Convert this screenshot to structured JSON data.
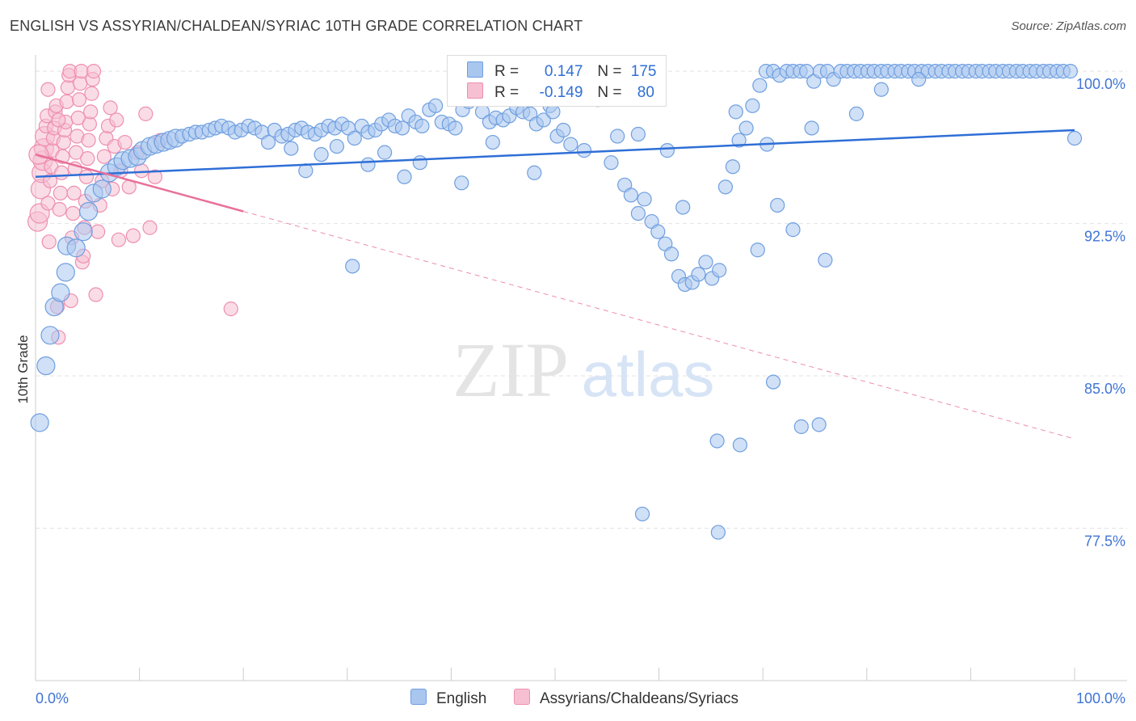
{
  "title": "ENGLISH VS ASSYRIAN/CHALDEAN/SYRIAC 10TH GRADE CORRELATION CHART",
  "source": "Source: ZipAtlas.com",
  "watermark": {
    "zip": "ZIP",
    "atlas": "atlas"
  },
  "legend": {
    "r_label": "R =",
    "n_label": "N =",
    "english": {
      "r": "0.147",
      "n": "175"
    },
    "assyrian": {
      "r": "-0.149",
      "n": "80"
    }
  },
  "colors": {
    "english_fill": "#a9c6ef",
    "english_stroke": "#6f9fe0",
    "english_line": "#2f6fd6",
    "assyrian_fill": "#f6c0d2",
    "assyrian_stroke": "#ee8fb0",
    "assyrian_line": "#e8709a",
    "axis_label": "#3f74d4",
    "grid": "#e3e3e3"
  },
  "chart_data": {
    "type": "scatter",
    "title": "ENGLISH VS ASSYRIAN/CHALDEAN/SYRIAC 10TH GRADE CORRELATION CHART",
    "xlabel": "",
    "ylabel": "10th Grade",
    "xlim": [
      0,
      100
    ],
    "ylim": [
      70.0,
      100.8
    ],
    "x_tick_labels": [
      "0.0%",
      "100.0%"
    ],
    "y_ticks": [
      77.5,
      85.0,
      92.5,
      100.0
    ],
    "y_tick_labels": [
      "77.5%",
      "85.0%",
      "92.5%",
      "100.0%"
    ],
    "legend_position": "top-center",
    "series": [
      {
        "name": "English",
        "r": 0.147,
        "n": 175,
        "trend": {
          "x0": 0,
          "y0": 94.8,
          "x1": 100,
          "y1": 97.1
        },
        "points": [
          [
            0.4,
            82.7
          ],
          [
            1.0,
            85.5
          ],
          [
            1.4,
            87.0
          ],
          [
            1.8,
            88.4
          ],
          [
            2.4,
            89.1
          ],
          [
            2.9,
            90.1
          ],
          [
            3.0,
            91.4
          ],
          [
            3.9,
            91.3
          ],
          [
            4.6,
            92.1
          ],
          [
            5.1,
            93.1
          ],
          [
            5.6,
            94.0
          ],
          [
            6.4,
            94.2
          ],
          [
            7.1,
            95.0
          ],
          [
            7.8,
            95.3
          ],
          [
            8.4,
            95.6
          ],
          [
            9.1,
            95.7
          ],
          [
            9.8,
            95.8
          ],
          [
            10.3,
            96.1
          ],
          [
            11.0,
            96.3
          ],
          [
            11.6,
            96.4
          ],
          [
            12.3,
            96.5
          ],
          [
            12.9,
            96.6
          ],
          [
            13.5,
            96.7
          ],
          [
            14.1,
            96.8
          ],
          [
            14.8,
            96.9
          ],
          [
            15.4,
            97.0
          ],
          [
            16.0,
            97.0
          ],
          [
            16.7,
            97.1
          ],
          [
            17.3,
            97.2
          ],
          [
            17.9,
            97.3
          ],
          [
            18.6,
            97.2
          ],
          [
            19.2,
            97.0
          ],
          [
            19.8,
            97.1
          ],
          [
            20.5,
            97.3
          ],
          [
            21.1,
            97.2
          ],
          [
            21.8,
            97.0
          ],
          [
            22.4,
            96.5
          ],
          [
            23.0,
            97.1
          ],
          [
            23.7,
            96.8
          ],
          [
            24.3,
            96.9
          ],
          [
            25.0,
            97.1
          ],
          [
            25.6,
            97.2
          ],
          [
            26.2,
            97.0
          ],
          [
            26.9,
            96.9
          ],
          [
            27.5,
            97.1
          ],
          [
            28.2,
            97.3
          ],
          [
            28.8,
            97.2
          ],
          [
            29.5,
            97.4
          ],
          [
            30.1,
            97.2
          ],
          [
            30.7,
            96.7
          ],
          [
            31.4,
            97.3
          ],
          [
            32.0,
            97.0
          ],
          [
            32.7,
            97.1
          ],
          [
            33.3,
            97.4
          ],
          [
            34.0,
            97.6
          ],
          [
            34.6,
            97.3
          ],
          [
            35.3,
            97.2
          ],
          [
            35.9,
            97.8
          ],
          [
            36.6,
            97.5
          ],
          [
            37.2,
            97.3
          ],
          [
            37.9,
            98.1
          ],
          [
            38.5,
            98.3
          ],
          [
            39.1,
            97.5
          ],
          [
            39.8,
            97.4
          ],
          [
            40.4,
            97.2
          ],
          [
            41.1,
            98.1
          ],
          [
            41.7,
            98.5
          ],
          [
            42.4,
            98.7
          ],
          [
            43.0,
            98.0
          ],
          [
            43.7,
            97.5
          ],
          [
            44.3,
            97.7
          ],
          [
            45.0,
            97.6
          ],
          [
            45.6,
            97.8
          ],
          [
            46.3,
            98.2
          ],
          [
            46.9,
            98.0
          ],
          [
            47.6,
            97.9
          ],
          [
            48.2,
            97.4
          ],
          [
            48.9,
            97.6
          ],
          [
            49.5,
            98.3
          ],
          [
            50.2,
            96.8
          ],
          [
            50.8,
            97.1
          ],
          [
            51.5,
            96.4
          ],
          [
            52.1,
            98.9
          ],
          [
            52.8,
            96.1
          ],
          [
            53.4,
            98.8
          ],
          [
            54.1,
            98.6
          ],
          [
            54.7,
            99.2
          ],
          [
            55.4,
            95.5
          ],
          [
            56.0,
            96.8
          ],
          [
            56.7,
            94.4
          ],
          [
            57.3,
            93.9
          ],
          [
            58.0,
            93.0
          ],
          [
            58.6,
            93.7
          ],
          [
            59.3,
            92.6
          ],
          [
            59.9,
            92.1
          ],
          [
            60.6,
            91.5
          ],
          [
            61.2,
            91.0
          ],
          [
            61.9,
            89.9
          ],
          [
            62.5,
            89.5
          ],
          [
            63.2,
            89.6
          ],
          [
            63.8,
            90.0
          ],
          [
            64.5,
            90.6
          ],
          [
            65.1,
            89.8
          ],
          [
            65.8,
            90.2
          ],
          [
            66.4,
            94.3
          ],
          [
            67.1,
            95.3
          ],
          [
            67.7,
            96.6
          ],
          [
            68.4,
            97.2
          ],
          [
            69.0,
            98.3
          ],
          [
            69.7,
            99.3
          ],
          [
            70.3,
            100.0
          ],
          [
            71.0,
            100.0
          ],
          [
            71.6,
            99.8
          ],
          [
            72.3,
            100.0
          ],
          [
            72.9,
            100.0
          ],
          [
            73.6,
            100.0
          ],
          [
            74.2,
            100.0
          ],
          [
            74.9,
            99.5
          ],
          [
            75.5,
            100.0
          ],
          [
            76.2,
            100.0
          ],
          [
            76.8,
            99.6
          ],
          [
            77.5,
            100.0
          ],
          [
            78.1,
            100.0
          ],
          [
            78.8,
            100.0
          ],
          [
            79.4,
            100.0
          ],
          [
            80.1,
            100.0
          ],
          [
            80.7,
            100.0
          ],
          [
            81.4,
            100.0
          ],
          [
            82.0,
            100.0
          ],
          [
            82.7,
            100.0
          ],
          [
            83.3,
            100.0
          ],
          [
            84.0,
            100.0
          ],
          [
            84.6,
            100.0
          ],
          [
            85.3,
            100.0
          ],
          [
            85.9,
            100.0
          ],
          [
            86.6,
            100.0
          ],
          [
            87.2,
            100.0
          ],
          [
            87.9,
            100.0
          ],
          [
            88.5,
            100.0
          ],
          [
            89.2,
            100.0
          ],
          [
            89.8,
            100.0
          ],
          [
            90.5,
            100.0
          ],
          [
            91.1,
            100.0
          ],
          [
            91.8,
            100.0
          ],
          [
            92.4,
            100.0
          ],
          [
            93.1,
            100.0
          ],
          [
            93.7,
            100.0
          ],
          [
            94.4,
            100.0
          ],
          [
            95.0,
            100.0
          ],
          [
            95.7,
            100.0
          ],
          [
            96.3,
            100.0
          ],
          [
            97.0,
            100.0
          ],
          [
            97.6,
            100.0
          ],
          [
            98.3,
            100.0
          ],
          [
            98.9,
            100.0
          ],
          [
            99.6,
            100.0
          ],
          [
            100.0,
            96.7
          ],
          [
            49.8,
            98.0
          ],
          [
            44.0,
            96.5
          ],
          [
            48.0,
            95.0
          ],
          [
            41.0,
            94.5
          ],
          [
            37.0,
            95.5
          ],
          [
            35.5,
            94.8
          ],
          [
            33.6,
            96.0
          ],
          [
            32.0,
            95.4
          ],
          [
            30.5,
            90.4
          ],
          [
            29.0,
            96.3
          ],
          [
            27.5,
            95.9
          ],
          [
            26.0,
            95.1
          ],
          [
            24.6,
            96.2
          ],
          [
            71.0,
            84.7
          ],
          [
            73.7,
            82.5
          ],
          [
            75.4,
            82.6
          ],
          [
            67.8,
            81.6
          ],
          [
            65.6,
            81.8
          ],
          [
            58.4,
            78.2
          ],
          [
            65.7,
            77.3
          ],
          [
            76.0,
            90.7
          ],
          [
            71.4,
            93.4
          ],
          [
            72.9,
            92.2
          ],
          [
            62.3,
            93.3
          ],
          [
            69.5,
            91.2
          ],
          [
            74.7,
            97.2
          ],
          [
            81.4,
            99.1
          ],
          [
            70.4,
            96.4
          ],
          [
            67.4,
            98.0
          ],
          [
            79.0,
            97.9
          ],
          [
            85.0,
            99.6
          ],
          [
            58.0,
            96.9
          ],
          [
            60.8,
            96.1
          ]
        ]
      },
      {
        "name": "Assyrians/Chaldeans/Syriacs",
        "r": -0.149,
        "n": 80,
        "trend": {
          "x0": 0,
          "y0": 95.9,
          "x1": 100,
          "y1": 81.9,
          "solid_until_x": 20
        },
        "points": [
          [
            0.2,
            92.6
          ],
          [
            0.4,
            93.0
          ],
          [
            0.5,
            94.2
          ],
          [
            0.6,
            95.0
          ],
          [
            0.7,
            95.6
          ],
          [
            0.8,
            96.2
          ],
          [
            0.9,
            96.8
          ],
          [
            1.0,
            97.3
          ],
          [
            1.1,
            97.8
          ],
          [
            1.2,
            93.5
          ],
          [
            1.3,
            91.6
          ],
          [
            1.4,
            94.6
          ],
          [
            1.5,
            95.3
          ],
          [
            1.6,
            96.1
          ],
          [
            1.7,
            96.7
          ],
          [
            1.8,
            97.2
          ],
          [
            1.9,
            98.0
          ],
          [
            2.0,
            98.3
          ],
          [
            2.1,
            88.4
          ],
          [
            2.2,
            86.9
          ],
          [
            2.3,
            93.2
          ],
          [
            2.4,
            94.0
          ],
          [
            2.5,
            95.0
          ],
          [
            2.6,
            95.8
          ],
          [
            2.7,
            96.5
          ],
          [
            2.8,
            97.1
          ],
          [
            2.9,
            97.5
          ],
          [
            3.0,
            98.5
          ],
          [
            3.1,
            99.2
          ],
          [
            3.2,
            99.8
          ],
          [
            3.3,
            100.0
          ],
          [
            3.4,
            88.7
          ],
          [
            3.5,
            91.8
          ],
          [
            3.6,
            93.0
          ],
          [
            3.7,
            94.0
          ],
          [
            3.8,
            95.2
          ],
          [
            3.9,
            96.0
          ],
          [
            4.0,
            96.8
          ],
          [
            4.1,
            97.7
          ],
          [
            4.2,
            98.6
          ],
          [
            4.3,
            99.4
          ],
          [
            4.4,
            100.0
          ],
          [
            4.5,
            90.6
          ],
          [
            4.6,
            90.9
          ],
          [
            4.7,
            92.3
          ],
          [
            4.8,
            93.6
          ],
          [
            4.9,
            94.8
          ],
          [
            5.0,
            95.7
          ],
          [
            5.1,
            96.6
          ],
          [
            5.2,
            97.4
          ],
          [
            5.3,
            98.0
          ],
          [
            5.4,
            98.9
          ],
          [
            5.5,
            99.6
          ],
          [
            5.6,
            100.0
          ],
          [
            5.8,
            89.0
          ],
          [
            6.0,
            92.1
          ],
          [
            6.2,
            93.4
          ],
          [
            6.4,
            94.6
          ],
          [
            6.6,
            95.8
          ],
          [
            6.8,
            96.7
          ],
          [
            7.0,
            97.3
          ],
          [
            7.2,
            98.2
          ],
          [
            7.4,
            94.2
          ],
          [
            7.6,
            96.3
          ],
          [
            7.8,
            97.6
          ],
          [
            8.0,
            91.7
          ],
          [
            8.2,
            95.1
          ],
          [
            8.6,
            96.5
          ],
          [
            9.0,
            94.3
          ],
          [
            9.4,
            91.9
          ],
          [
            9.8,
            96.0
          ],
          [
            10.2,
            95.1
          ],
          [
            10.6,
            97.9
          ],
          [
            11.0,
            92.3
          ],
          [
            11.5,
            94.8
          ],
          [
            12.0,
            96.6
          ],
          [
            18.8,
            88.3
          ],
          [
            0.3,
            95.9
          ],
          [
            1.2,
            99.1
          ],
          [
            2.2,
            97.6
          ]
        ]
      }
    ]
  }
}
